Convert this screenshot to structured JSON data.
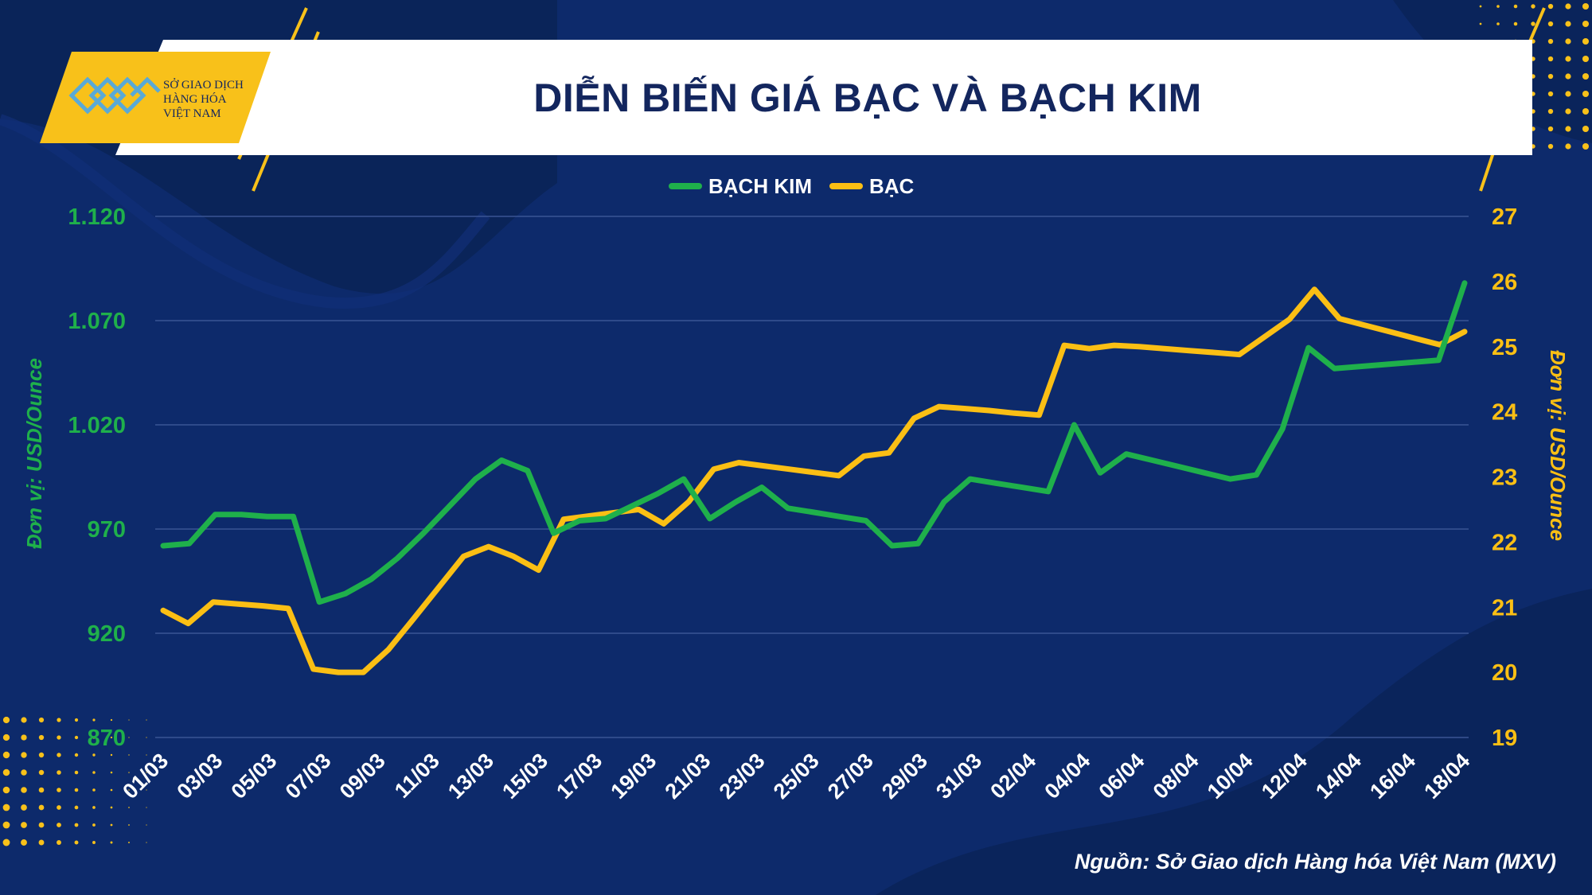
{
  "header": {
    "title": "DIỄN BIẾN GIÁ BẠC VÀ BẠCH KIM",
    "logo_lines": [
      "SỞ GIAO DỊCH",
      "HÀNG HÓA",
      "VIỆT NAM"
    ]
  },
  "source": "Nguồn: Sở Giao dịch Hàng hóa Việt Nam (MXV)",
  "colors": {
    "platinum": "#1fb04b",
    "silver": "#fbbf14",
    "background": "#0d2a6b",
    "title_text": "#13265e",
    "accent_yellow": "#f8c11a"
  },
  "chart_data": {
    "type": "line",
    "title": "DIỄN BIẾN GIÁ BẠC VÀ BẠCH KIM",
    "ylabel_left": "Đơn vị: USD/Ounce",
    "ylabel_right": "Đơn vị: USD/Ounce",
    "y_left_range": [
      870,
      1120
    ],
    "y_left_ticks": [
      "1.120",
      "1.070",
      "1.020",
      "970",
      "920",
      "870"
    ],
    "y_left_tick_values": [
      1120,
      1070,
      1020,
      970,
      920,
      870
    ],
    "y_right_range": [
      19,
      27
    ],
    "y_right_ticks": [
      "27",
      "26",
      "25",
      "24",
      "23",
      "22",
      "21",
      "20",
      "19"
    ],
    "y_right_tick_values": [
      27,
      26,
      25,
      24,
      23,
      22,
      21,
      20,
      19
    ],
    "x_labels": [
      "01/03",
      "03/03",
      "05/03",
      "07/03",
      "09/03",
      "11/03",
      "13/03",
      "15/03",
      "17/03",
      "19/03",
      "21/03",
      "23/03",
      "25/03",
      "27/03",
      "29/03",
      "31/03",
      "02/04",
      "04/04",
      "06/04",
      "08/04",
      "10/04",
      "12/04",
      "14/04",
      "16/04",
      "18/04"
    ],
    "grid": true,
    "legend_position": "top-center",
    "series": [
      {
        "name": "BẠCH KIM",
        "axis": "left",
        "values": [
          962,
          963,
          977,
          977,
          976,
          976,
          935,
          939,
          946,
          956,
          968,
          981,
          994,
          1003,
          998,
          968,
          974,
          975,
          981,
          987,
          994,
          975,
          983,
          990,
          980,
          978,
          976,
          974,
          962,
          963,
          983,
          994,
          992,
          990,
          988,
          1020,
          997,
          1006,
          1003,
          1000,
          997,
          994,
          996,
          1018,
          1057,
          1047,
          1048,
          1049,
          1050,
          1051,
          1088
        ]
      },
      {
        "name": "BẠC",
        "axis": "right",
        "values": [
          20.95,
          20.75,
          21.08,
          21.05,
          21.02,
          20.98,
          20.05,
          20.0,
          20.0,
          20.35,
          20.82,
          21.3,
          21.78,
          21.93,
          21.78,
          21.57,
          22.35,
          22.4,
          22.45,
          22.5,
          22.28,
          22.62,
          23.12,
          23.22,
          23.17,
          23.12,
          23.07,
          23.02,
          23.32,
          23.37,
          23.9,
          24.08,
          24.05,
          24.02,
          23.98,
          23.95,
          25.02,
          24.97,
          25.02,
          25.0,
          24.97,
          24.94,
          24.91,
          24.88,
          25.15,
          25.42,
          25.88,
          25.43,
          25.33,
          25.23,
          25.13,
          25.03,
          25.23
        ]
      }
    ],
    "x_positions_platinum": [
      0,
      0.5,
      1,
      1.5,
      2,
      2.5,
      3,
      3.5,
      4,
      4.5,
      5,
      5.5,
      6,
      6.5,
      7,
      7.5,
      8,
      8.5,
      9,
      9.5,
      10,
      10.5,
      11,
      11.5,
      12,
      12.5,
      13,
      13.5,
      14,
      14.5,
      15,
      15.5,
      16,
      16.5,
      17,
      17.5,
      18,
      18.5,
      19,
      19.5,
      20,
      20.5,
      21,
      21.5,
      22,
      22.5,
      23,
      23.5,
      24,
      24.5,
      25
    ]
  }
}
